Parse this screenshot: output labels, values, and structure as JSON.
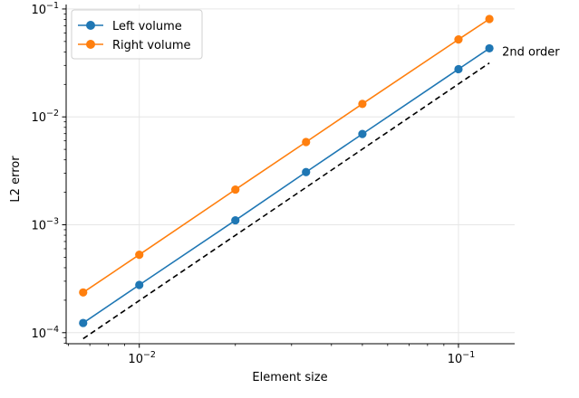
{
  "chart_data": {
    "type": "line",
    "xscale": "log",
    "yscale": "log",
    "xlabel": "Element size",
    "ylabel": "L2 error",
    "xlim": [
      0.0059,
      0.15
    ],
    "ylim": [
      7.9e-05,
      0.11
    ],
    "grid": true,
    "legend_position": "top-left",
    "x_ticks": [
      {
        "value": 0.01,
        "base": "10",
        "exp": "−2"
      },
      {
        "value": 0.1,
        "base": "10",
        "exp": "−1"
      }
    ],
    "y_ticks": [
      {
        "value": 0.0001,
        "base": "10",
        "exp": "−4"
      },
      {
        "value": 0.001,
        "base": "10",
        "exp": "−3"
      },
      {
        "value": 0.01,
        "base": "10",
        "exp": "−2"
      },
      {
        "value": 0.1,
        "base": "10",
        "exp": "−1"
      }
    ],
    "x": [
      0.00667,
      0.01,
      0.02,
      0.0333,
      0.05,
      0.1,
      0.125
    ],
    "series": [
      {
        "name": "Left volume",
        "color": "#1f77b4",
        "values": [
          0.000123,
          0.000277,
          0.0011,
          0.00308,
          0.00694,
          0.0277,
          0.0432
        ]
      },
      {
        "name": "Right volume",
        "color": "#ff7f0e",
        "values": [
          0.000236,
          0.000528,
          0.00212,
          0.00585,
          0.0132,
          0.0522,
          0.0808
        ]
      }
    ],
    "reference": {
      "label": "2nd order",
      "style": "dashed",
      "color": "#000000",
      "x": [
        0.00667,
        0.125
      ],
      "y": [
        8.8e-05,
        0.0316
      ]
    }
  }
}
